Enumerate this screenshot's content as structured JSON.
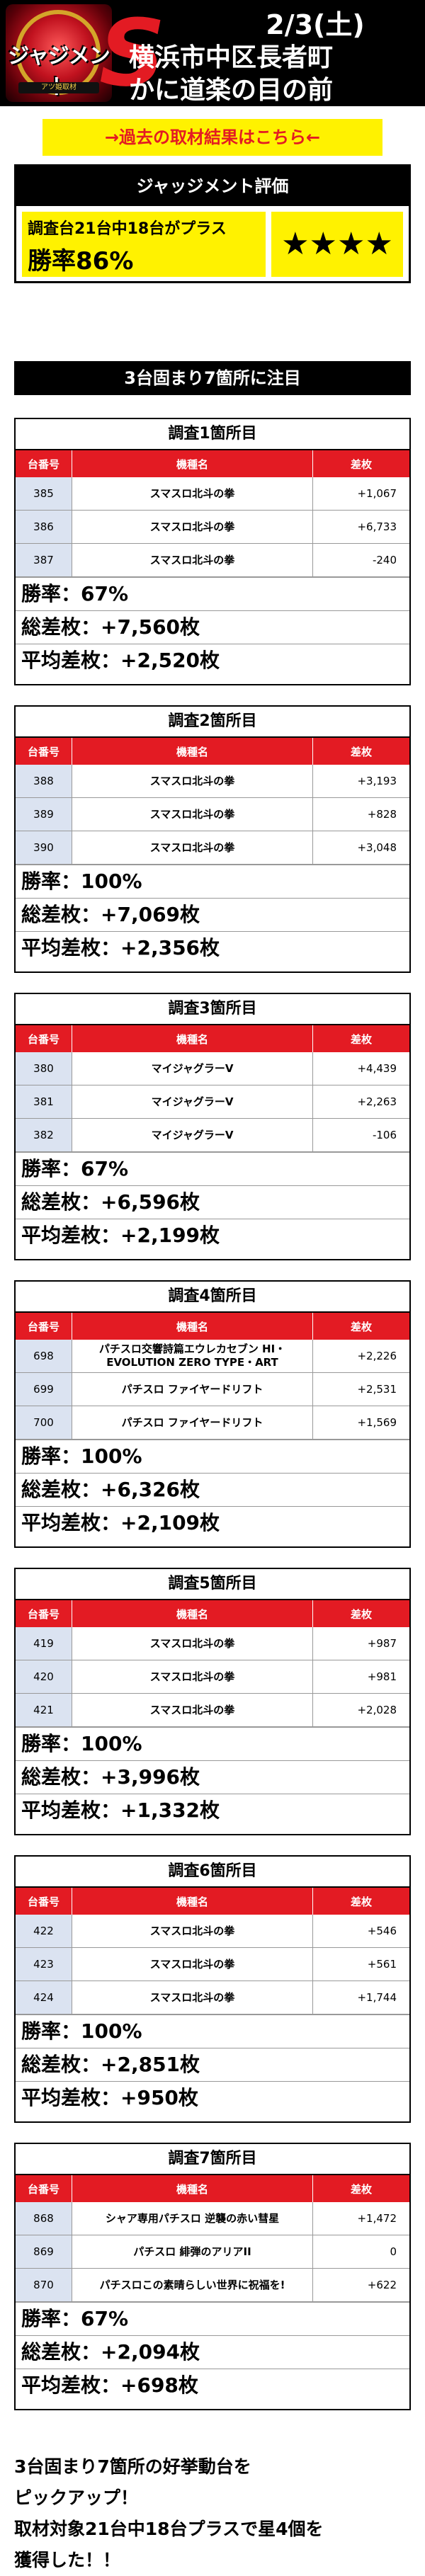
{
  "header": {
    "logo_text": "ジャジメント",
    "logo_sub": "アツ姫取材",
    "big_letter": "S",
    "date": "2/3(土)",
    "store_line1": "横浜市中区長者町",
    "store_line2": "かに道楽の目の前"
  },
  "link_bar": {
    "label": "→過去の取材結果はこちら←"
  },
  "evaluation": {
    "title": "ジャッジメント評価",
    "subtitle": "調査台21台中18台がプラス",
    "rate": "勝率86%",
    "stars": "★★★★"
  },
  "focus_bar": {
    "label": "3台固まり7箇所に注目"
  },
  "columns": {
    "number": "台番号",
    "model": "機種名",
    "diff": "差枚"
  },
  "surveys": [
    {
      "title": "調査1箇所目",
      "rows": [
        {
          "number": "385",
          "model": "スマスロ北斗の拳",
          "diff": "+1,067"
        },
        {
          "number": "386",
          "model": "スマスロ北斗の拳",
          "diff": "+6,733"
        },
        {
          "number": "387",
          "model": "スマスロ北斗の拳",
          "diff": "-240"
        }
      ],
      "win_rate": "勝率：67%",
      "total": "総差枚：+7,560枚",
      "average": "平均差枚：+2,520枚"
    },
    {
      "title": "調査2箇所目",
      "rows": [
        {
          "number": "388",
          "model": "スマスロ北斗の拳",
          "diff": "+3,193"
        },
        {
          "number": "389",
          "model": "スマスロ北斗の拳",
          "diff": "+828"
        },
        {
          "number": "390",
          "model": "スマスロ北斗の拳",
          "diff": "+3,048"
        }
      ],
      "win_rate": "勝率：100%",
      "total": "総差枚：+7,069枚",
      "average": "平均差枚：+2,356枚"
    },
    {
      "title": "調査3箇所目",
      "rows": [
        {
          "number": "380",
          "model": "マイジャグラーV",
          "diff": "+4,439"
        },
        {
          "number": "381",
          "model": "マイジャグラーV",
          "diff": "+2,263"
        },
        {
          "number": "382",
          "model": "マイジャグラーV",
          "diff": "-106"
        }
      ],
      "win_rate": "勝率：67%",
      "total": "総差枚：+6,596枚",
      "average": "平均差枚：+2,199枚"
    },
    {
      "title": "調査4箇所目",
      "rows": [
        {
          "number": "698",
          "model": "パチスロ交響詩篇エウレカセブン HI・EVOLUTION ZERO TYPE・ART",
          "diff": "+2,226"
        },
        {
          "number": "699",
          "model": "パチスロ ファイヤードリフト",
          "diff": "+2,531"
        },
        {
          "number": "700",
          "model": "パチスロ ファイヤードリフト",
          "diff": "+1,569"
        }
      ],
      "win_rate": "勝率：100%",
      "total": "総差枚：+6,326枚",
      "average": "平均差枚：+2,109枚"
    },
    {
      "title": "調査5箇所目",
      "rows": [
        {
          "number": "419",
          "model": "スマスロ北斗の拳",
          "diff": "+987"
        },
        {
          "number": "420",
          "model": "スマスロ北斗の拳",
          "diff": "+981"
        },
        {
          "number": "421",
          "model": "スマスロ北斗の拳",
          "diff": "+2,028"
        }
      ],
      "win_rate": "勝率：100%",
      "total": "総差枚：+3,996枚",
      "average": "平均差枚：+1,332枚"
    },
    {
      "title": "調査6箇所目",
      "rows": [
        {
          "number": "422",
          "model": "スマスロ北斗の拳",
          "diff": "+546"
        },
        {
          "number": "423",
          "model": "スマスロ北斗の拳",
          "diff": "+561"
        },
        {
          "number": "424",
          "model": "スマスロ北斗の拳",
          "diff": "+1,744"
        }
      ],
      "win_rate": "勝率：100%",
      "total": "総差枚：+2,851枚",
      "average": "平均差枚：+950枚"
    },
    {
      "title": "調査7箇所目",
      "rows": [
        {
          "number": "868",
          "model": "シャア専用パチスロ 逆襲の赤い彗星",
          "diff": "+1,472"
        },
        {
          "number": "869",
          "model": "パチスロ 緋弾のアリアII",
          "diff": "0"
        },
        {
          "number": "870",
          "model": "パチスロこの素晴らしい世界に祝福を!",
          "diff": "+622"
        }
      ],
      "win_rate": "勝率：67%",
      "total": "総差枚：+2,094枚",
      "average": "平均差枚：+698枚"
    }
  ],
  "footer": {
    "line1": "3台固まり7箇所の好挙動台を",
    "line2": "ピックアップ！",
    "line3": "取材対象21台中18台プラスで星4個を",
    "line4": "獲得した！！"
  }
}
